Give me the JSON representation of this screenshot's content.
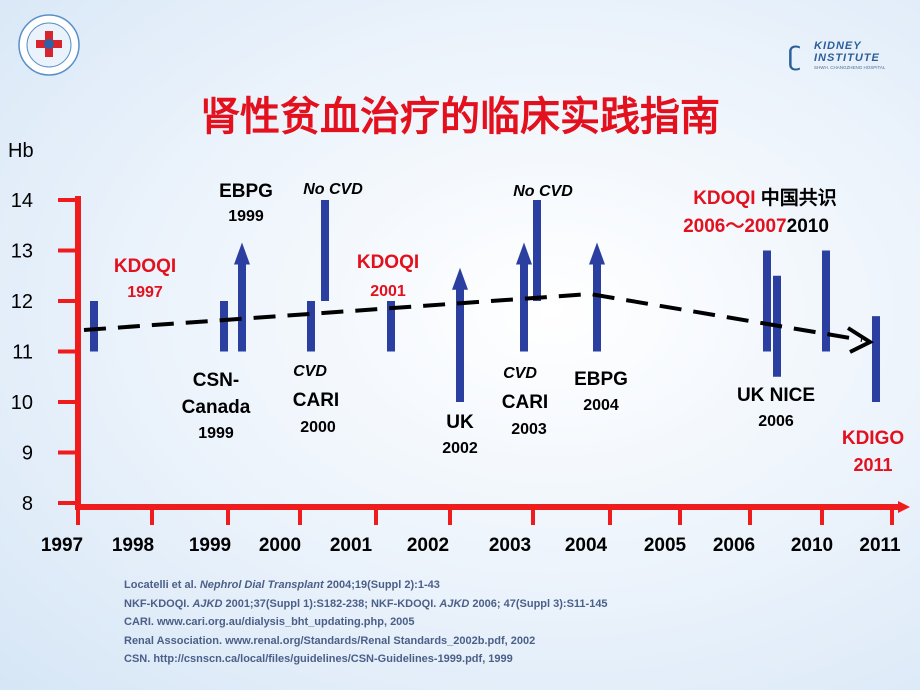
{
  "title": "肾性贫血治疗的临床实践指南",
  "logo_right": {
    "line1": "KIDNEY",
    "line2": "INSTITUTE",
    "line3": "SHWH. CHANGZHENG HOSPITAL"
  },
  "logo_left_icon": "hospital-cross-emblem",
  "colors": {
    "title": "#e3101e",
    "axis": "#ee1c1c",
    "bar": "#2a3fa0",
    "label_red": "#e3101e",
    "label_black": "#000000",
    "refs": "#4b5f88"
  },
  "chart_data": {
    "type": "range-bar-timeline",
    "ylabel": "Hb",
    "ylim": [
      8,
      14
    ],
    "yticks": [
      8,
      9,
      10,
      11,
      12,
      13,
      14
    ],
    "xticks": [
      "1997",
      "1998",
      "1999",
      "2000",
      "2001",
      "2002",
      "2003",
      "2004",
      "2005",
      "2006",
      "2010",
      "2011"
    ],
    "bars": [
      {
        "name": "KDOQI 1997",
        "x": 1997.3,
        "low": 11.0,
        "high": 12.0,
        "arrow": false
      },
      {
        "name": "CSN-Canada 1999",
        "x": 1999.0,
        "low": 11.0,
        "high": 12.0,
        "arrow": false
      },
      {
        "name": "EBPG 1999",
        "x": 1999.2,
        "low": 11.0,
        "high": 13.0,
        "arrow": true
      },
      {
        "name": "CARI 2000 CVD",
        "x": 2000.4,
        "low": 11.0,
        "high": 12.0,
        "arrow": false
      },
      {
        "name": "CARI 2000 No CVD",
        "x": 2000.6,
        "low": 12.0,
        "high": 14.0,
        "arrow": false
      },
      {
        "name": "KDOQI 2001",
        "x": 2001.6,
        "low": 11.0,
        "high": 12.0,
        "arrow": false
      },
      {
        "name": "UK 2002",
        "x": 2002.4,
        "low": 10.0,
        "high": 12.5,
        "arrow": true
      },
      {
        "name": "CARI 2003 CVD",
        "x": 2003.2,
        "low": 11.0,
        "high": 13.0,
        "arrow": true
      },
      {
        "name": "CARI 2003 No CVD",
        "x": 2003.4,
        "low": 12.0,
        "high": 14.0,
        "arrow": false
      },
      {
        "name": "EBPG 2004",
        "x": 2004.1,
        "low": 11.0,
        "high": 13.0,
        "arrow": true
      },
      {
        "name": "KDOQI 2006-2007",
        "x": 2006.0,
        "low": 11.0,
        "high": 13.0,
        "arrow": false
      },
      {
        "name": "UK NICE 2006",
        "x": 2006.5,
        "low": 10.5,
        "high": 12.5,
        "arrow": false
      },
      {
        "name": "KDOQI 中国共识 2010",
        "x": 2010.0,
        "low": 11.0,
        "high": 13.0,
        "arrow": false
      },
      {
        "name": "KDIGO 2011",
        "x": 2011.0,
        "low": 10.0,
        "high": 11.7,
        "arrow": false
      }
    ],
    "trend": {
      "style": "dashed",
      "points": [
        [
          1997,
          11.45
        ],
        [
          2004,
          12.15
        ],
        [
          2011,
          11.2
        ]
      ],
      "arrow_end": true
    }
  },
  "labels": [
    {
      "id": "kdoqi1997-name",
      "text": "KDOQI",
      "color": "red"
    },
    {
      "id": "kdoqi1997-year",
      "text": "1997",
      "color": "red"
    },
    {
      "id": "csn-name1",
      "text": "CSN-",
      "color": "black"
    },
    {
      "id": "csn-name2",
      "text": "Canada",
      "color": "black"
    },
    {
      "id": "csn-year",
      "text": "1999",
      "color": "black"
    },
    {
      "id": "ebpg1999-name",
      "text": "EBPG",
      "color": "black"
    },
    {
      "id": "ebpg1999-year",
      "text": "1999",
      "color": "black"
    },
    {
      "id": "nocvd1",
      "text": "No CVD",
      "color": "black"
    },
    {
      "id": "cvd1",
      "text": "CVD",
      "color": "black"
    },
    {
      "id": "cari2000-name",
      "text": "CARI",
      "color": "black"
    },
    {
      "id": "cari2000-year",
      "text": "2000",
      "color": "black"
    },
    {
      "id": "kdoqi2001-name",
      "text": "KDOQI",
      "color": "red"
    },
    {
      "id": "kdoqi2001-year",
      "text": "2001",
      "color": "red"
    },
    {
      "id": "uk-name",
      "text": "UK",
      "color": "black"
    },
    {
      "id": "uk-year",
      "text": "2002",
      "color": "black"
    },
    {
      "id": "nocvd2",
      "text": "No CVD",
      "color": "black"
    },
    {
      "id": "cvd2",
      "text": "CVD",
      "color": "black"
    },
    {
      "id": "cari2003-name",
      "text": "CARI",
      "color": "black"
    },
    {
      "id": "cari2003-year",
      "text": "2003",
      "color": "black"
    },
    {
      "id": "ebpg2004-name",
      "text": "EBPG",
      "color": "black"
    },
    {
      "id": "ebpg2004-year",
      "text": "2004",
      "color": "black"
    },
    {
      "id": "kdoqi2006-name",
      "text": "KDOQI",
      "color": "red"
    },
    {
      "id": "china-name",
      "text": "中国共识",
      "color": "black"
    },
    {
      "id": "kdoqi2006-year",
      "text": "2006～2007",
      "color": "red"
    },
    {
      "id": "china-year",
      "text": "2010",
      "color": "black"
    },
    {
      "id": "uknice-name",
      "text": "UK NICE",
      "color": "black"
    },
    {
      "id": "uknice-year",
      "text": "2006",
      "color": "black"
    },
    {
      "id": "kdigo-name",
      "text": "KDIGO",
      "color": "red"
    },
    {
      "id": "kdigo-year",
      "text": "2011",
      "color": "red"
    }
  ],
  "references": [
    {
      "pre": "Locatelli et al. ",
      "italic": "Nephrol Dial Transplant",
      "post": " 2004;19(Suppl 2):1-43"
    },
    {
      "pre": "NKF-KDOQI. ",
      "italic": "AJKD",
      "post": " 2001;37(Suppl 1):S182-238; NKF-KDOQI. ",
      "italic2": "AJKD",
      "post2": " 2006; 47(Suppl 3):S11-145"
    },
    {
      "pre": "CARI. www.cari.org.au/dialysis_bht_updating.php, 2005"
    },
    {
      "pre": "Renal Association. www.renal.org/Standards/Renal Standards_2002b.pdf, 2002"
    },
    {
      "pre": "CSN. http://csnscn.ca/local/files/guidelines/CSN-Guidelines-1999.pdf, 1999"
    }
  ]
}
